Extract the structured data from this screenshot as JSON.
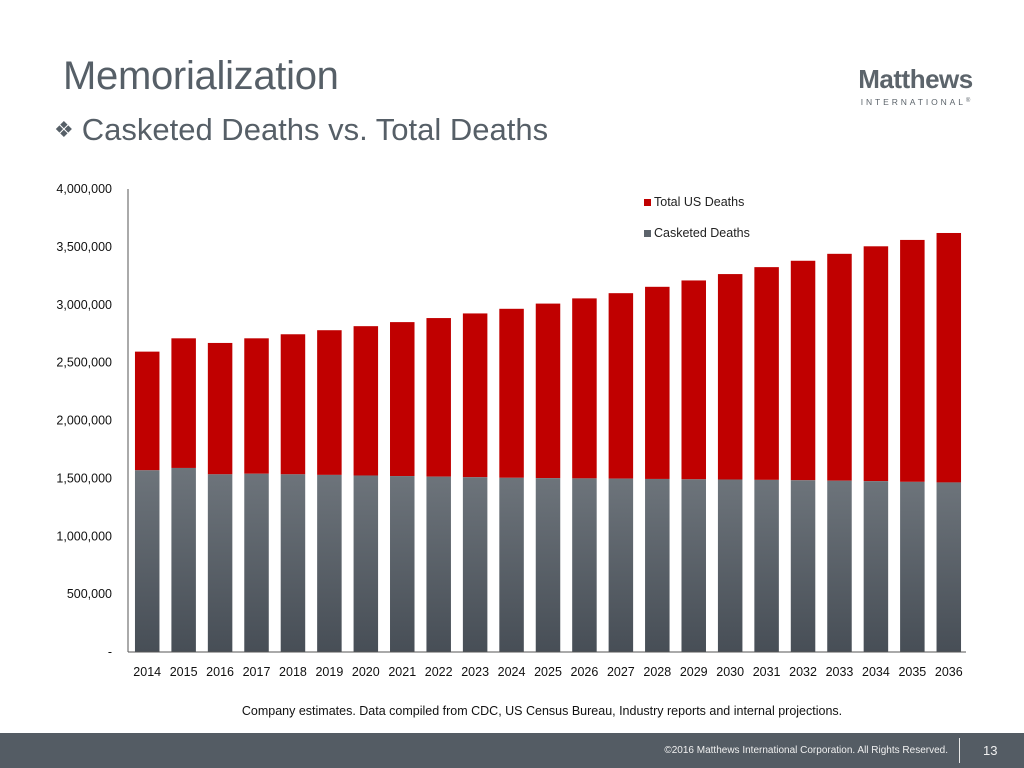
{
  "slide": {
    "title": "Memorialization",
    "subtitle": "Casketed Deaths vs. Total Deaths",
    "subtitle_bullet_icon": "diamond-cluster-bullet",
    "logo": {
      "brand": "Matthews",
      "sub": "INTERNATIONAL",
      "registered_mark": "®"
    },
    "source_note": "Company estimates. Data compiled from CDC, US Census Bureau, Industry reports and internal projections.",
    "footer": {
      "copyright": "©2016 Matthews International Corporation. All Rights Reserved.",
      "page_number": "13"
    }
  },
  "colors": {
    "total": "#c00000",
    "casketed_top": "#6d747b",
    "casketed_bottom": "#474e56",
    "text": "#565f67",
    "footer_bg": "#545c64"
  },
  "chart_data": {
    "type": "bar",
    "stacked": true,
    "title": "Casketed Deaths vs. Total Deaths",
    "xlabel": "",
    "ylabel": "",
    "ylim": [
      0,
      4000000
    ],
    "yticks": [
      0,
      500000,
      1000000,
      1500000,
      2000000,
      2500000,
      3000000,
      3500000,
      4000000
    ],
    "ytick_labels": [
      "-",
      "500,000",
      "1,000,000",
      "1,500,000",
      "2,000,000",
      "2,500,000",
      "3,000,000",
      "3,500,000",
      "4,000,000"
    ],
    "grid": false,
    "legend_position": "top-right",
    "categories": [
      "2014",
      "2015",
      "2016",
      "2017",
      "2018",
      "2019",
      "2020",
      "2021",
      "2022",
      "2023",
      "2024",
      "2025",
      "2026",
      "2027",
      "2028",
      "2029",
      "2030",
      "2031",
      "2032",
      "2033",
      "2034",
      "2035",
      "2036"
    ],
    "series": [
      {
        "name": "Casketed Deaths",
        "color": "#5c636b",
        "values": [
          1570000,
          1590000,
          1535000,
          1540000,
          1535000,
          1530000,
          1525000,
          1520000,
          1515000,
          1510000,
          1505000,
          1502000,
          1500000,
          1498000,
          1495000,
          1492000,
          1490000,
          1487000,
          1484000,
          1480000,
          1476000,
          1470000,
          1465000
        ]
      },
      {
        "name": "Total US Deaths",
        "color": "#c00000",
        "values": [
          2595000,
          2710000,
          2670000,
          2710000,
          2745000,
          2780000,
          2815000,
          2850000,
          2885000,
          2925000,
          2965000,
          3010000,
          3055000,
          3100000,
          3155000,
          3210000,
          3265000,
          3325000,
          3380000,
          3440000,
          3505000,
          3560000,
          3620000
        ]
      }
    ],
    "legend": [
      "Total US Deaths",
      "Casketed Deaths"
    ]
  }
}
